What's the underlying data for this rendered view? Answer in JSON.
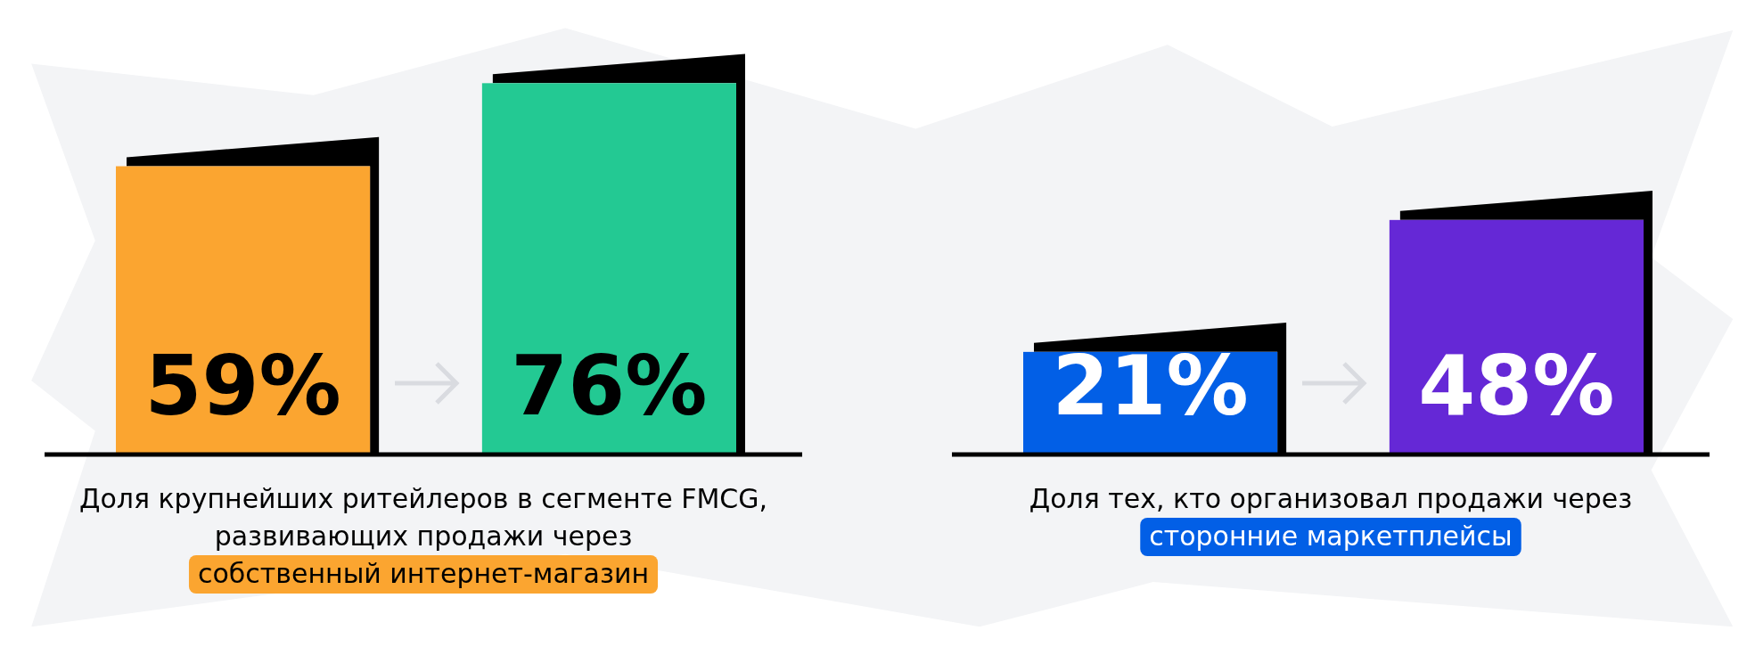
{
  "chart_data": [
    {
      "type": "bar",
      "categories": [
        null,
        null
      ],
      "values": [
        59,
        76
      ],
      "value_labels": [
        "59%",
        "76%"
      ],
      "colors": [
        "#fba530",
        "#23c993"
      ],
      "annotations": [
        "Доля крупнейших ритейлеров в сегменте FMCG, развивающих продажи через",
        "собственный интернет-магазин"
      ]
    },
    {
      "type": "bar",
      "categories": [
        null,
        null
      ],
      "values": [
        21,
        48
      ],
      "value_labels": [
        "21%",
        "48%"
      ],
      "colors": [
        "#025fe6",
        "#6528d6"
      ],
      "annotations": [
        "Доля тех, кто организовал продажи через",
        "сторонние маркетплейсы"
      ]
    }
  ]
}
